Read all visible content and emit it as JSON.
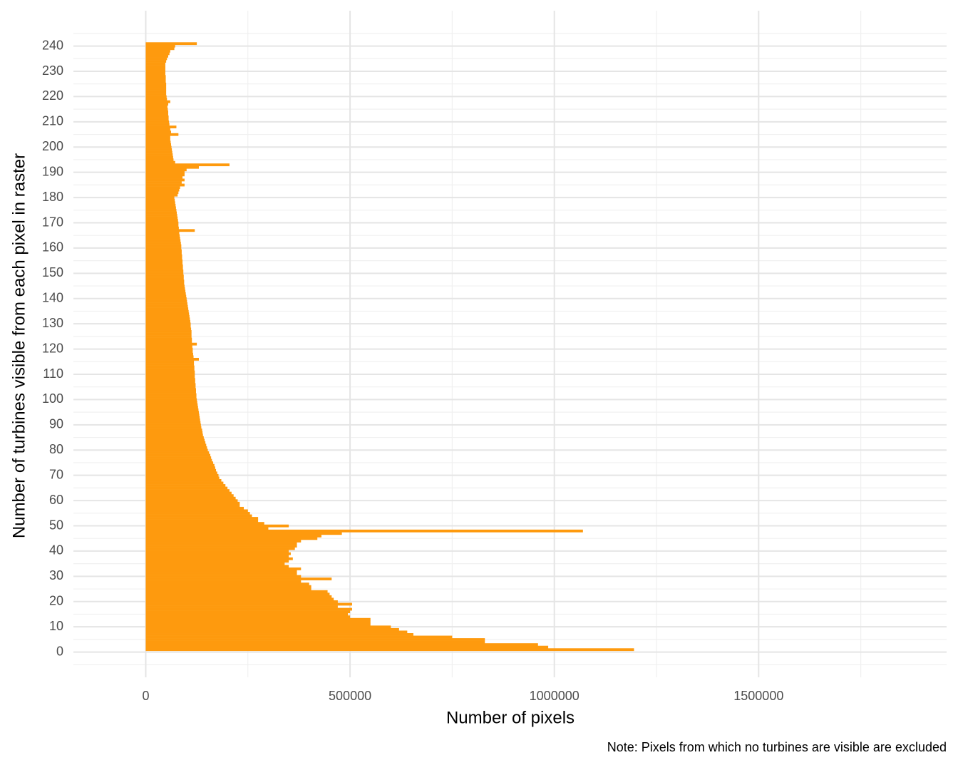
{
  "chart_data": {
    "type": "barh",
    "x_label": "Number of pixels",
    "y_label": "Number of turbines visible from each pixel in raster",
    "caption": "Note: Pixels from which no turbines are visible are excluded",
    "color": "#fe9a0e",
    "xlim": [
      -177000,
      1960000
    ],
    "xticks": [
      0,
      500000,
      1000000,
      1500000
    ],
    "ylim": [
      -10,
      254
    ],
    "yticks": [
      0,
      10,
      20,
      30,
      40,
      50,
      60,
      70,
      80,
      90,
      100,
      110,
      120,
      130,
      140,
      150,
      160,
      170,
      180,
      190,
      200,
      210,
      220,
      230,
      240
    ],
    "grid": true,
    "y": [
      1,
      2,
      3,
      4,
      5,
      6,
      7,
      8,
      9,
      10,
      11,
      12,
      13,
      14,
      15,
      16,
      17,
      18,
      19,
      20,
      21,
      22,
      23,
      24,
      25,
      26,
      27,
      28,
      29,
      30,
      31,
      32,
      33,
      34,
      35,
      36,
      37,
      38,
      39,
      40,
      41,
      42,
      43,
      44,
      45,
      46,
      47,
      48,
      49,
      50,
      51,
      52,
      53,
      54,
      55,
      56,
      57,
      58,
      59,
      60,
      61,
      62,
      63,
      64,
      65,
      66,
      67,
      68,
      69,
      70,
      71,
      72,
      73,
      74,
      75,
      76,
      77,
      78,
      79,
      80,
      81,
      82,
      83,
      84,
      85,
      86,
      87,
      88,
      89,
      90,
      91,
      92,
      93,
      94,
      95,
      96,
      97,
      98,
      99,
      100,
      101,
      102,
      103,
      104,
      105,
      106,
      107,
      108,
      109,
      110,
      111,
      112,
      113,
      114,
      115,
      116,
      117,
      118,
      119,
      120,
      121,
      122,
      123,
      124,
      125,
      126,
      127,
      128,
      129,
      130,
      131,
      132,
      133,
      134,
      135,
      136,
      137,
      138,
      139,
      140,
      141,
      142,
      143,
      144,
      145,
      146,
      147,
      148,
      149,
      150,
      151,
      152,
      153,
      154,
      155,
      156,
      157,
      158,
      159,
      160,
      161,
      162,
      163,
      164,
      165,
      166,
      167,
      168,
      169,
      170,
      171,
      172,
      173,
      174,
      175,
      176,
      177,
      178,
      179,
      180,
      181,
      182,
      183,
      184,
      185,
      186,
      187,
      188,
      189,
      190,
      191,
      192,
      193,
      194,
      195,
      196,
      197,
      198,
      199,
      200,
      201,
      202,
      203,
      204,
      205,
      206,
      207,
      208,
      209,
      210,
      211,
      212,
      213,
      214,
      215,
      216,
      217,
      218,
      219,
      220,
      221,
      222,
      223,
      224,
      225,
      226,
      227,
      228,
      229,
      230,
      231,
      232,
      233,
      234,
      235,
      236,
      237,
      238,
      239,
      240,
      241
    ],
    "values": [
      1195000,
      985000,
      960000,
      830000,
      830000,
      750000,
      655000,
      640000,
      620000,
      600000,
      550000,
      550000,
      550000,
      500000,
      495000,
      500000,
      505000,
      470000,
      505000,
      470000,
      460000,
      455000,
      450000,
      445000,
      405000,
      405000,
      400000,
      380000,
      455000,
      380000,
      370000,
      370000,
      380000,
      350000,
      340000,
      350000,
      360000,
      350000,
      355000,
      350000,
      365000,
      370000,
      370000,
      380000,
      420000,
      430000,
      480000,
      1070000,
      300000,
      350000,
      290000,
      275000,
      275000,
      260000,
      255000,
      250000,
      240000,
      230000,
      230000,
      225000,
      220000,
      215000,
      210000,
      205000,
      200000,
      195000,
      190000,
      185000,
      180000,
      178000,
      175000,
      172000,
      170000,
      168000,
      165000,
      162000,
      160000,
      158000,
      155000,
      152000,
      150000,
      148000,
      146000,
      144000,
      142000,
      140000,
      139000,
      138000,
      136000,
      135000,
      134000,
      133000,
      132000,
      131000,
      130000,
      129000,
      128000,
      127000,
      126000,
      125000,
      124000,
      124000,
      123000,
      123000,
      122000,
      122000,
      121000,
      121000,
      120000,
      120000,
      120000,
      119000,
      119000,
      118000,
      118000,
      130000,
      117000,
      116000,
      115000,
      115000,
      114000,
      125000,
      113000,
      113000,
      112000,
      112000,
      112000,
      111000,
      110000,
      110000,
      109000,
      108000,
      107000,
      106000,
      105000,
      104000,
      103000,
      102000,
      101000,
      100000,
      99000,
      98000,
      97000,
      96000,
      95000,
      94000,
      94000,
      93000,
      93000,
      92000,
      92000,
      91000,
      91000,
      90000,
      90000,
      89000,
      89000,
      88000,
      88000,
      87000,
      87000,
      86000,
      85000,
      84000,
      83000,
      82000,
      120000,
      81000,
      80000,
      80000,
      79000,
      78000,
      77000,
      76000,
      75000,
      74000,
      73000,
      72000,
      71000,
      70000,
      78000,
      80000,
      82000,
      84000,
      95000,
      88000,
      95000,
      90000,
      95000,
      95000,
      100000,
      130000,
      205000,
      72000,
      68000,
      67000,
      66000,
      65000,
      64000,
      63000,
      62000,
      61000,
      60000,
      60000,
      80000,
      62000,
      60000,
      75000,
      58000,
      57000,
      56000,
      56000,
      55000,
      55000,
      54000,
      53000,
      55000,
      60000,
      52000,
      51000,
      50000,
      50000,
      50000,
      50000,
      50000,
      49000,
      49000,
      49000,
      48000,
      48000,
      48000,
      48000,
      48000,
      50000,
      52000,
      55000,
      58000,
      60000,
      70000,
      72000,
      125000
    ]
  }
}
